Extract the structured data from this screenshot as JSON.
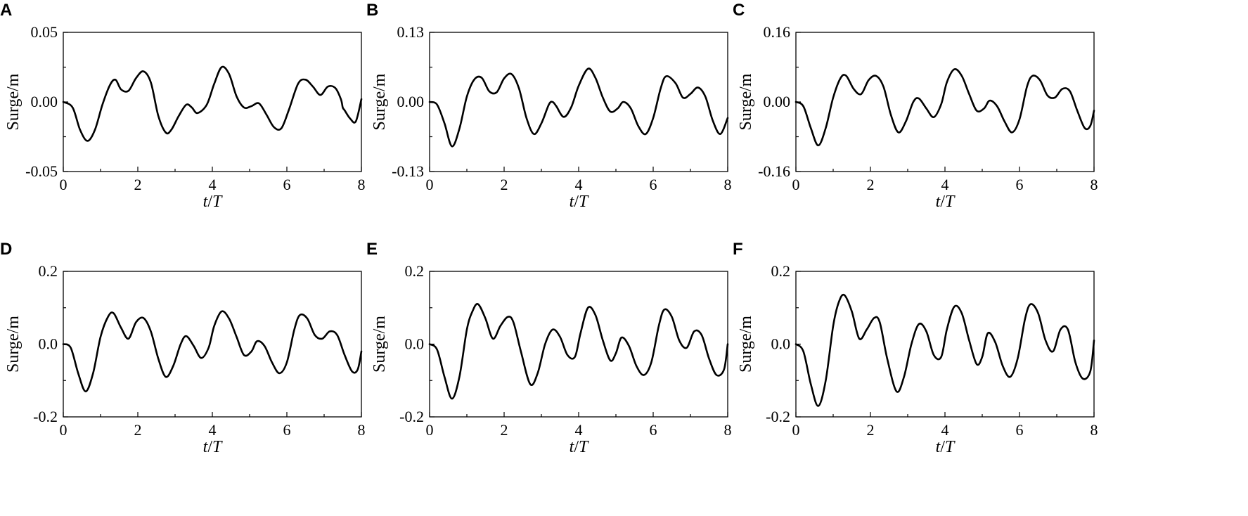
{
  "chart_data": [
    {
      "type": "line",
      "panel_label": "A",
      "xlabel": "t/T",
      "ylabel": "Surge/m",
      "xlim": [
        0,
        8
      ],
      "ylim": [
        -0.05,
        0.05
      ],
      "xticks": [
        0,
        2,
        4,
        6,
        8
      ],
      "yticks": [
        -0.05,
        0.0,
        0.05
      ],
      "ytick_labels": [
        "-0.05",
        "0.00",
        "0.05"
      ],
      "series": [
        {
          "x": [
            0,
            0.25,
            0.45,
            0.65,
            0.85,
            1.05,
            1.25,
            1.4,
            1.55,
            1.75,
            1.95,
            2.15,
            2.35,
            2.55,
            2.75,
            2.9,
            3.1,
            3.3,
            3.45,
            3.6,
            3.85,
            4.05,
            4.25,
            4.45,
            4.65,
            4.85,
            5.05,
            5.25,
            5.45,
            5.65,
            5.85,
            6.05,
            6.3,
            6.5,
            6.7,
            6.9,
            7.1,
            7.3,
            7.45,
            7.5,
            7.55,
            7.7,
            7.85,
            8.0
          ],
          "y": [
            0.0,
            -0.004,
            -0.02,
            -0.028,
            -0.02,
            -0.002,
            0.012,
            0.016,
            0.009,
            0.008,
            0.017,
            0.022,
            0.014,
            -0.01,
            -0.022,
            -0.02,
            -0.01,
            -0.002,
            -0.004,
            -0.008,
            -0.002,
            0.013,
            0.025,
            0.02,
            0.004,
            -0.004,
            -0.003,
            -0.001,
            -0.009,
            -0.018,
            -0.019,
            -0.006,
            0.013,
            0.016,
            0.011,
            0.005,
            0.011,
            0.01,
            0.002,
            -0.004,
            -0.006,
            -0.012,
            -0.014,
            0.002
          ]
        }
      ]
    },
    {
      "type": "line",
      "panel_label": "B",
      "xlabel": "t/T",
      "ylabel": "Surge/m",
      "xlim": [
        0,
        8
      ],
      "ylim": [
        -0.13,
        0.13
      ],
      "xticks": [
        0,
        2,
        4,
        6,
        8
      ],
      "yticks": [
        -0.13,
        0.0,
        0.13
      ],
      "ytick_labels": [
        "-0.13",
        "0.00",
        "0.13"
      ],
      "series": [
        {
          "x": [
            0,
            0.2,
            0.4,
            0.6,
            0.8,
            1.0,
            1.2,
            1.4,
            1.6,
            1.8,
            2.0,
            2.2,
            2.4,
            2.6,
            2.8,
            3.0,
            3.2,
            3.3,
            3.4,
            3.6,
            3.8,
            4.0,
            4.25,
            4.45,
            4.65,
            4.85,
            5.05,
            5.2,
            5.4,
            5.6,
            5.8,
            6.0,
            6.2,
            6.35,
            6.6,
            6.8,
            7.0,
            7.2,
            7.4,
            7.6,
            7.8,
            8.0
          ],
          "y": [
            0.0,
            -0.005,
            -0.04,
            -0.083,
            -0.05,
            0.01,
            0.042,
            0.045,
            0.02,
            0.018,
            0.044,
            0.052,
            0.025,
            -0.03,
            -0.06,
            -0.04,
            -0.005,
            0.0,
            -0.008,
            -0.028,
            -0.01,
            0.03,
            0.062,
            0.045,
            0.008,
            -0.018,
            -0.012,
            0.0,
            -0.012,
            -0.045,
            -0.06,
            -0.03,
            0.025,
            0.048,
            0.035,
            0.008,
            0.015,
            0.027,
            0.01,
            -0.035,
            -0.06,
            -0.03
          ]
        }
      ]
    },
    {
      "type": "line",
      "panel_label": "C",
      "xlabel": "t/T",
      "ylabel": "Surge/m",
      "xlim": [
        0,
        8
      ],
      "ylim": [
        -0.16,
        0.16
      ],
      "xticks": [
        0,
        2,
        4,
        6,
        8
      ],
      "yticks": [
        -0.16,
        0.0,
        0.16
      ],
      "ytick_labels": [
        "-0.16",
        "0.00",
        "0.16"
      ],
      "series": [
        {
          "x": [
            0,
            0.2,
            0.4,
            0.6,
            0.8,
            1.0,
            1.2,
            1.35,
            1.55,
            1.75,
            1.95,
            2.15,
            2.35,
            2.55,
            2.75,
            2.95,
            3.15,
            3.3,
            3.5,
            3.7,
            3.9,
            4.05,
            4.25,
            4.45,
            4.65,
            4.85,
            5.05,
            5.2,
            5.4,
            5.6,
            5.8,
            6.0,
            6.2,
            6.35,
            6.55,
            6.75,
            6.95,
            7.15,
            7.35,
            7.55,
            7.75,
            7.9,
            8.0
          ],
          "y": [
            0.0,
            -0.01,
            -0.06,
            -0.1,
            -0.06,
            0.01,
            0.055,
            0.06,
            0.03,
            0.018,
            0.05,
            0.06,
            0.035,
            -0.03,
            -0.07,
            -0.045,
            0.0,
            0.008,
            -0.015,
            -0.035,
            -0.005,
            0.045,
            0.075,
            0.06,
            0.018,
            -0.02,
            -0.015,
            0.003,
            -0.01,
            -0.045,
            -0.07,
            -0.04,
            0.035,
            0.06,
            0.05,
            0.015,
            0.01,
            0.03,
            0.025,
            -0.02,
            -0.06,
            -0.055,
            -0.02
          ]
        }
      ]
    },
    {
      "type": "line",
      "panel_label": "D",
      "xlabel": "t/T",
      "ylabel": "Surge/m",
      "xlim": [
        0,
        8
      ],
      "ylim": [
        -0.2,
        0.2
      ],
      "xticks": [
        0,
        2,
        4,
        6,
        8
      ],
      "yticks": [
        -0.2,
        0.0,
        0.2
      ],
      "ytick_labels": [
        "-0.2",
        "0.0",
        "0.2"
      ],
      "series": [
        {
          "x": [
            0,
            0.2,
            0.4,
            0.6,
            0.8,
            1.0,
            1.2,
            1.35,
            1.55,
            1.75,
            1.95,
            2.15,
            2.35,
            2.55,
            2.75,
            2.95,
            3.15,
            3.3,
            3.5,
            3.7,
            3.9,
            4.05,
            4.25,
            4.45,
            4.65,
            4.85,
            5.05,
            5.2,
            5.4,
            5.6,
            5.8,
            6.0,
            6.2,
            6.35,
            6.55,
            6.75,
            6.95,
            7.15,
            7.35,
            7.55,
            7.75,
            7.9,
            8.0
          ],
          "y": [
            0.0,
            -0.01,
            -0.08,
            -0.13,
            -0.08,
            0.02,
            0.075,
            0.085,
            0.045,
            0.015,
            0.06,
            0.072,
            0.035,
            -0.04,
            -0.09,
            -0.06,
            0.0,
            0.022,
            -0.005,
            -0.038,
            -0.01,
            0.05,
            0.09,
            0.07,
            0.02,
            -0.03,
            -0.02,
            0.008,
            -0.005,
            -0.05,
            -0.08,
            -0.05,
            0.04,
            0.08,
            0.07,
            0.025,
            0.015,
            0.035,
            0.025,
            -0.03,
            -0.075,
            -0.07,
            -0.02
          ]
        }
      ]
    },
    {
      "type": "line",
      "panel_label": "E",
      "xlabel": "t/T",
      "ylabel": "Surge/m",
      "xlim": [
        0,
        8
      ],
      "ylim": [
        -0.2,
        0.2
      ],
      "xticks": [
        0,
        2,
        4,
        6,
        8
      ],
      "yticks": [
        -0.2,
        0.0,
        0.2
      ],
      "ytick_labels": [
        "-0.2",
        "0.0",
        "0.2"
      ],
      "series": [
        {
          "x": [
            0,
            0.2,
            0.4,
            0.6,
            0.8,
            1.0,
            1.15,
            1.3,
            1.5,
            1.7,
            1.9,
            2.1,
            2.25,
            2.45,
            2.7,
            2.9,
            3.1,
            3.3,
            3.5,
            3.7,
            3.9,
            4.05,
            4.25,
            4.45,
            4.65,
            4.85,
            5.0,
            5.15,
            5.35,
            5.55,
            5.75,
            5.95,
            6.15,
            6.3,
            6.5,
            6.7,
            6.9,
            7.1,
            7.3,
            7.5,
            7.7,
            7.9,
            8.0
          ],
          "y": [
            0.0,
            -0.015,
            -0.09,
            -0.15,
            -0.09,
            0.04,
            0.09,
            0.11,
            0.07,
            0.015,
            0.05,
            0.075,
            0.06,
            -0.02,
            -0.11,
            -0.08,
            0.0,
            0.04,
            0.02,
            -0.03,
            -0.035,
            0.03,
            0.1,
            0.08,
            0.01,
            -0.045,
            -0.025,
            0.018,
            -0.005,
            -0.06,
            -0.085,
            -0.05,
            0.05,
            0.095,
            0.075,
            0.01,
            -0.01,
            0.035,
            0.025,
            -0.04,
            -0.085,
            -0.07,
            0.0
          ]
        }
      ]
    },
    {
      "type": "line",
      "panel_label": "F",
      "xlabel": "t/T",
      "ylabel": "Surge/m",
      "xlim": [
        0,
        8
      ],
      "ylim": [
        -0.2,
        0.2
      ],
      "xticks": [
        0,
        2,
        4,
        6,
        8
      ],
      "yticks": [
        -0.2,
        0.0,
        0.2
      ],
      "ytick_labels": [
        "-0.2",
        "0.0",
        "0.2"
      ],
      "series": [
        {
          "x": [
            0,
            0.2,
            0.4,
            0.6,
            0.8,
            1.0,
            1.15,
            1.3,
            1.5,
            1.7,
            1.9,
            2.1,
            2.25,
            2.45,
            2.7,
            2.9,
            3.1,
            3.3,
            3.5,
            3.7,
            3.9,
            4.05,
            4.25,
            4.45,
            4.65,
            4.85,
            5.0,
            5.15,
            5.35,
            5.55,
            5.75,
            5.95,
            6.15,
            6.3,
            6.5,
            6.7,
            6.9,
            7.1,
            7.3,
            7.5,
            7.7,
            7.9,
            8.0
          ],
          "y": [
            0.0,
            -0.02,
            -0.11,
            -0.17,
            -0.1,
            0.05,
            0.115,
            0.135,
            0.09,
            0.015,
            0.04,
            0.072,
            0.06,
            -0.04,
            -0.13,
            -0.09,
            0.0,
            0.055,
            0.035,
            -0.03,
            -0.035,
            0.04,
            0.103,
            0.085,
            0.01,
            -0.055,
            -0.035,
            0.03,
            0.005,
            -0.06,
            -0.09,
            -0.04,
            0.07,
            0.11,
            0.085,
            0.01,
            -0.02,
            0.04,
            0.04,
            -0.05,
            -0.095,
            -0.075,
            0.01
          ]
        }
      ]
    }
  ]
}
